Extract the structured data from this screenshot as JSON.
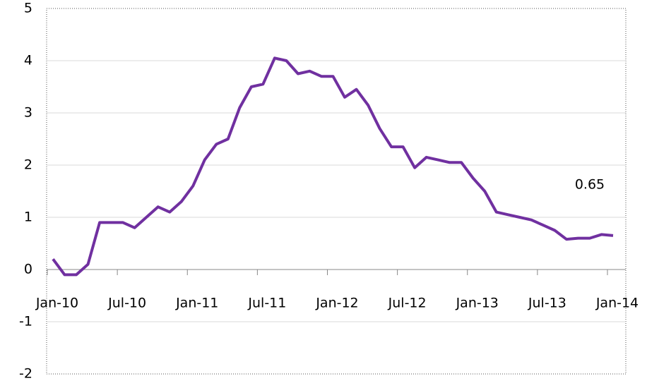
{
  "chart_data": {
    "type": "line",
    "categories": [
      "Jan-10",
      null,
      null,
      null,
      null,
      null,
      "Jul-10",
      null,
      null,
      null,
      null,
      null,
      "Jan-11",
      null,
      null,
      null,
      null,
      null,
      "Jul-11",
      null,
      null,
      null,
      null,
      null,
      "Jan-12",
      null,
      null,
      null,
      null,
      null,
      "Jul-12",
      null,
      null,
      null,
      null,
      null,
      "Jan-13",
      null,
      null,
      null,
      null,
      null,
      "Jul-13",
      null,
      null,
      null,
      null,
      null,
      "Jan-14"
    ],
    "series": [
      {
        "color": "#7030a0",
        "values": [
          0.2,
          -0.1,
          -0.1,
          0.1,
          0.9,
          0.9,
          0.9,
          0.8,
          1.0,
          1.2,
          1.1,
          1.3,
          1.6,
          2.1,
          2.4,
          2.5,
          3.1,
          3.5,
          3.55,
          4.05,
          4.0,
          3.75,
          3.8,
          3.7,
          3.7,
          3.3,
          3.45,
          3.15,
          2.7,
          2.35,
          2.35,
          1.95,
          2.15,
          2.1,
          2.05,
          2.05,
          1.75,
          1.5,
          1.1,
          1.05,
          1.0,
          0.95,
          0.85,
          0.75,
          0.58,
          0.6,
          0.6,
          0.67,
          0.65
        ]
      }
    ],
    "annotations": [
      {
        "text": "0.65"
      }
    ],
    "ylim": [
      -2,
      5
    ],
    "yticks": [
      -2,
      -1,
      0,
      1,
      2,
      3,
      4,
      5
    ],
    "grid": true
  }
}
